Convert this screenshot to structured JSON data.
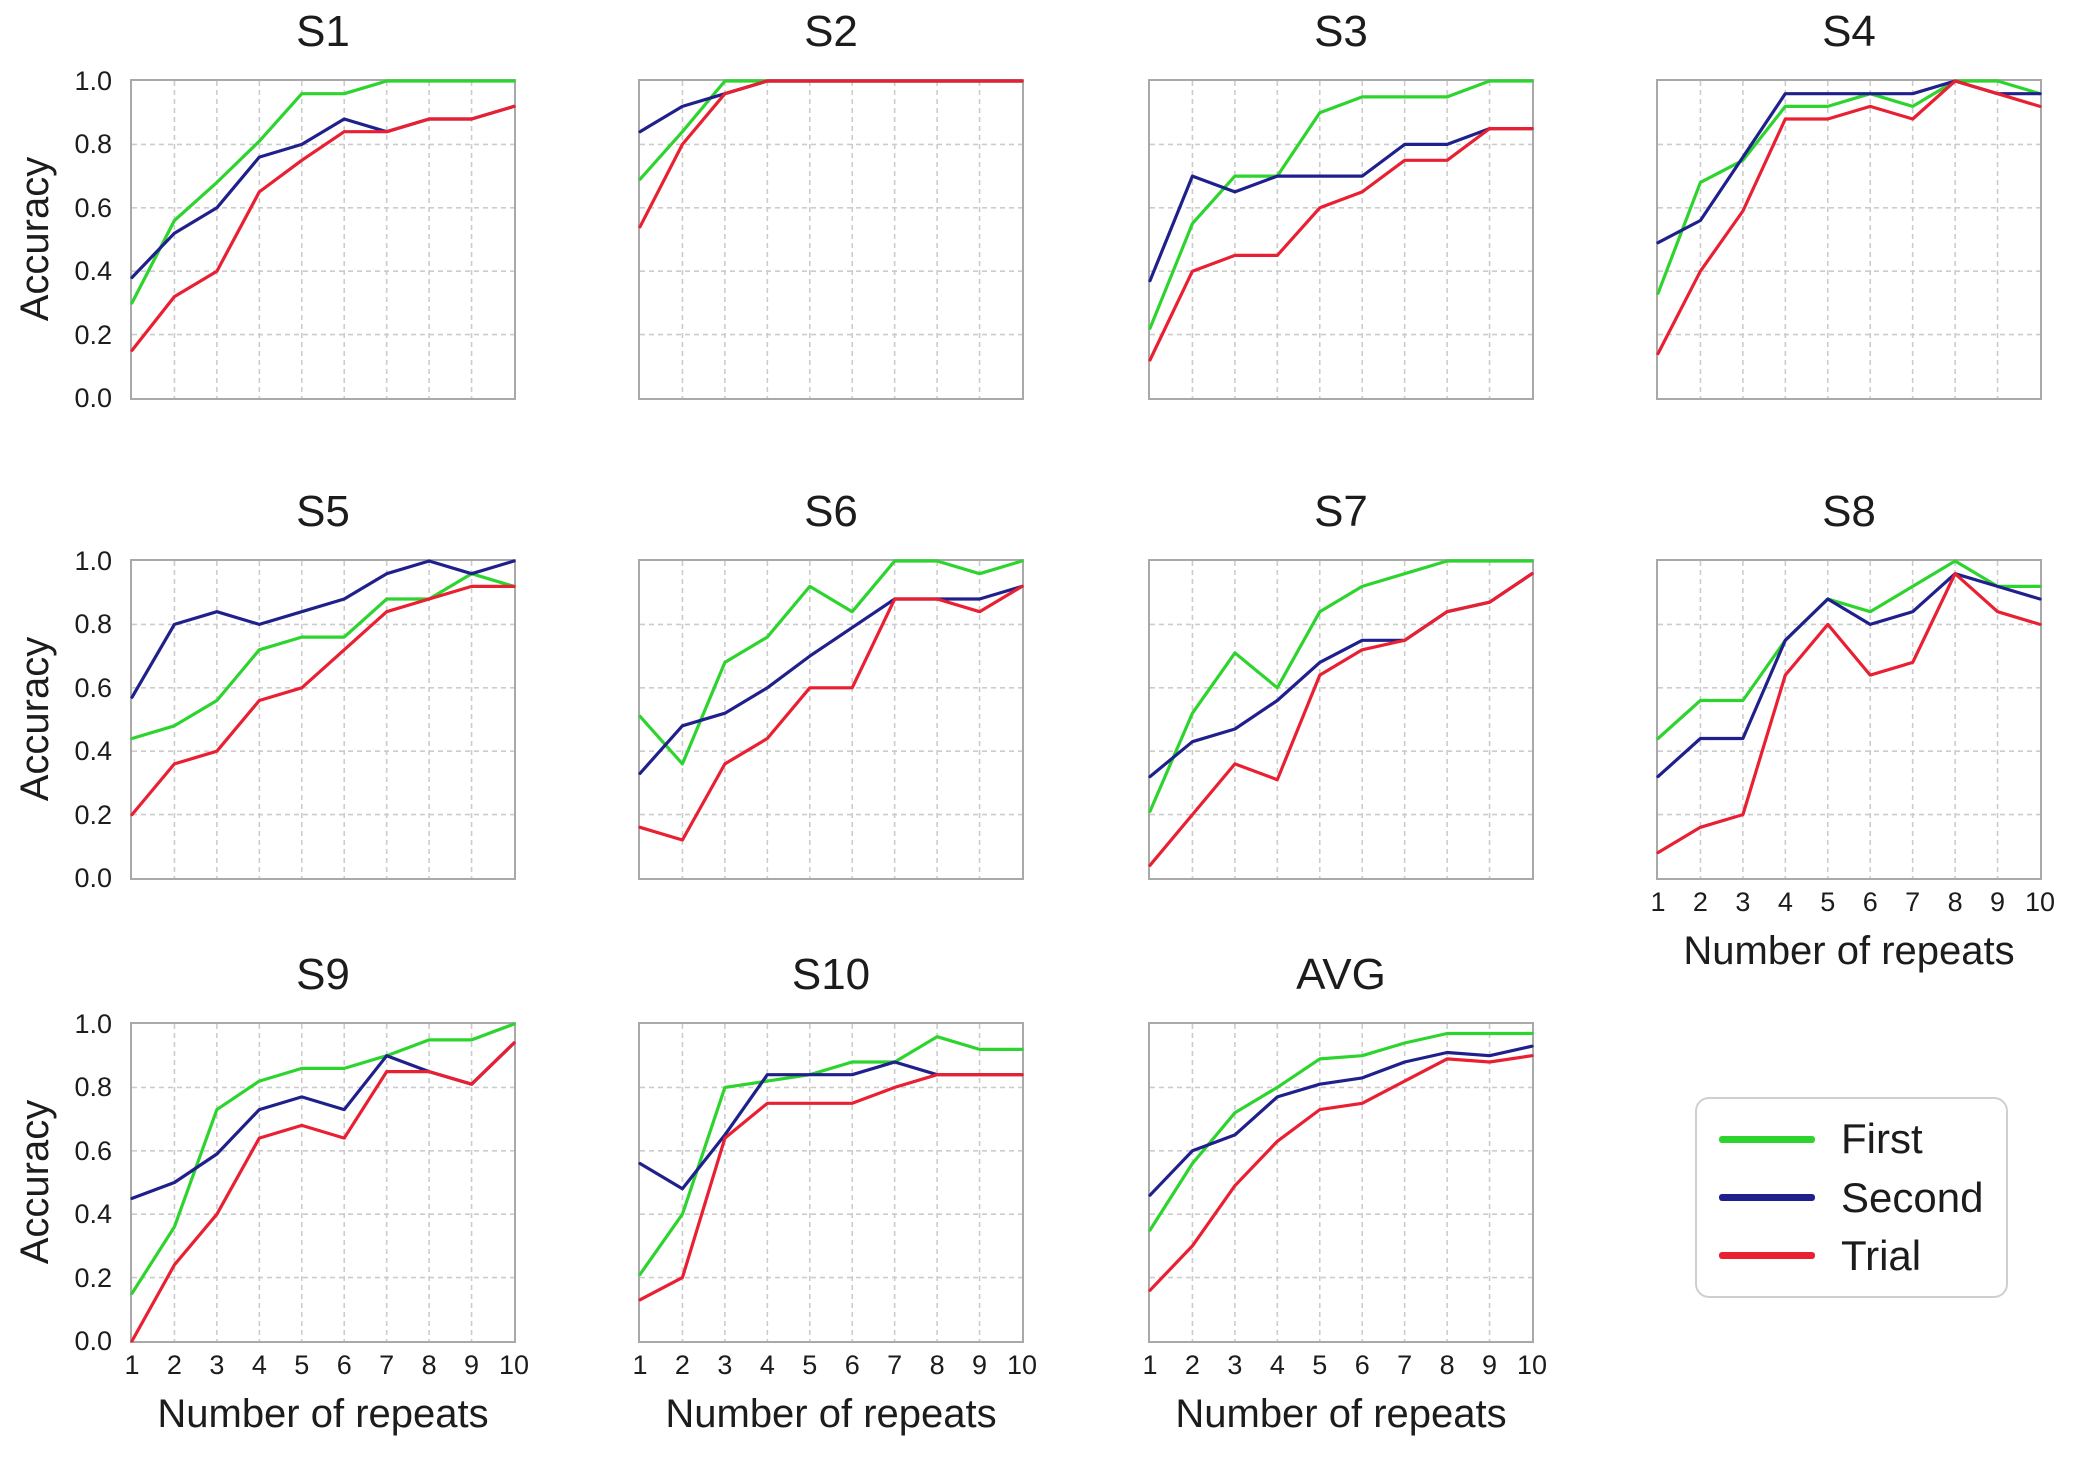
{
  "page": {
    "background": "#ffffff"
  },
  "axes": {
    "x_label": "Number of repeats",
    "y_label": "Accuracy",
    "x_ticks": [
      "1",
      "2",
      "3",
      "4",
      "5",
      "6",
      "7",
      "8",
      "9",
      "10"
    ],
    "y_ticks": [
      "1.0",
      "0.8",
      "0.6",
      "0.4",
      "0.2",
      "0.0"
    ]
  },
  "legend": {
    "position": "bottom-right, outside last grid cell",
    "entries": [
      {
        "label": "First",
        "color": "#2ed42e"
      },
      {
        "label": "Second",
        "color": "#20208c"
      },
      {
        "label": "Trial",
        "color": "#e92032"
      }
    ]
  },
  "chart_data": [
    {
      "type": "line",
      "title": "S1",
      "xlabel": "Number of repeats",
      "ylabel": "Accuracy",
      "ylim": [
        0,
        1
      ],
      "x": [
        1,
        2,
        3,
        4,
        5,
        6,
        7,
        8,
        9,
        10
      ],
      "grid": true,
      "series": [
        {
          "name": "First",
          "values": [
            0.3,
            0.56,
            0.68,
            0.81,
            0.96,
            0.96,
            1.0,
            1.0,
            1.0,
            1.0
          ]
        },
        {
          "name": "Second",
          "values": [
            0.38,
            0.52,
            0.6,
            0.76,
            0.8,
            0.88,
            0.84,
            0.88,
            0.88,
            0.92
          ]
        },
        {
          "name": "Trial",
          "values": [
            0.15,
            0.32,
            0.4,
            0.65,
            0.75,
            0.84,
            0.84,
            0.88,
            0.88,
            0.92
          ]
        }
      ]
    },
    {
      "type": "line",
      "title": "S2",
      "xlabel": "Number of repeats",
      "ylabel": "Accuracy",
      "ylim": [
        0,
        1
      ],
      "x": [
        1,
        2,
        3,
        4,
        5,
        6,
        7,
        8,
        9,
        10
      ],
      "grid": true,
      "series": [
        {
          "name": "First",
          "values": [
            0.69,
            0.84,
            1.0,
            1.0,
            1.0,
            1.0,
            1.0,
            1.0,
            1.0,
            1.0
          ]
        },
        {
          "name": "Second",
          "values": [
            0.84,
            0.92,
            0.96,
            1.0,
            1.0,
            1.0,
            1.0,
            1.0,
            1.0,
            1.0
          ]
        },
        {
          "name": "Trial",
          "values": [
            0.54,
            0.8,
            0.96,
            1.0,
            1.0,
            1.0,
            1.0,
            1.0,
            1.0,
            1.0
          ]
        }
      ]
    },
    {
      "type": "line",
      "title": "S3",
      "xlabel": "Number of repeats",
      "ylabel": "Accuracy",
      "ylim": [
        0,
        1
      ],
      "x": [
        1,
        2,
        3,
        4,
        5,
        6,
        7,
        8,
        9,
        10
      ],
      "grid": true,
      "series": [
        {
          "name": "First",
          "values": [
            0.22,
            0.55,
            0.7,
            0.7,
            0.9,
            0.95,
            0.95,
            0.95,
            1.0,
            1.0
          ]
        },
        {
          "name": "Second",
          "values": [
            0.37,
            0.7,
            0.65,
            0.7,
            0.7,
            0.7,
            0.8,
            0.8,
            0.85,
            0.85
          ]
        },
        {
          "name": "Trial",
          "values": [
            0.12,
            0.4,
            0.45,
            0.45,
            0.6,
            0.65,
            0.75,
            0.75,
            0.85,
            0.85
          ]
        }
      ]
    },
    {
      "type": "line",
      "title": "S4",
      "xlabel": "Number of repeats",
      "ylabel": "Accuracy",
      "ylim": [
        0,
        1
      ],
      "x": [
        1,
        2,
        3,
        4,
        5,
        6,
        7,
        8,
        9,
        10
      ],
      "grid": true,
      "series": [
        {
          "name": "First",
          "values": [
            0.33,
            0.68,
            0.75,
            0.92,
            0.92,
            0.96,
            0.92,
            1.0,
            1.0,
            0.96
          ]
        },
        {
          "name": "Second",
          "values": [
            0.49,
            0.56,
            0.76,
            0.96,
            0.96,
            0.96,
            0.96,
            1.0,
            0.96,
            0.96
          ]
        },
        {
          "name": "Trial",
          "values": [
            0.14,
            0.4,
            0.59,
            0.88,
            0.88,
            0.92,
            0.88,
            1.0,
            0.96,
            0.92
          ]
        }
      ]
    },
    {
      "type": "line",
      "title": "S5",
      "xlabel": "Number of repeats",
      "ylabel": "Accuracy",
      "ylim": [
        0,
        1
      ],
      "x": [
        1,
        2,
        3,
        4,
        5,
        6,
        7,
        8,
        9,
        10
      ],
      "grid": true,
      "series": [
        {
          "name": "First",
          "values": [
            0.44,
            0.48,
            0.56,
            0.72,
            0.76,
            0.76,
            0.88,
            0.88,
            0.96,
            0.92
          ]
        },
        {
          "name": "Second",
          "values": [
            0.57,
            0.8,
            0.84,
            0.8,
            0.84,
            0.88,
            0.96,
            1.0,
            0.96,
            1.0
          ]
        },
        {
          "name": "Trial",
          "values": [
            0.2,
            0.36,
            0.4,
            0.56,
            0.6,
            0.72,
            0.84,
            0.88,
            0.92,
            0.92
          ]
        }
      ]
    },
    {
      "type": "line",
      "title": "S6",
      "xlabel": "Number of repeats",
      "ylabel": "Accuracy",
      "ylim": [
        0,
        1
      ],
      "x": [
        1,
        2,
        3,
        4,
        5,
        6,
        7,
        8,
        9,
        10
      ],
      "grid": true,
      "series": [
        {
          "name": "First",
          "values": [
            0.51,
            0.36,
            0.68,
            0.76,
            0.92,
            0.84,
            1.0,
            1.0,
            0.96,
            1.0
          ]
        },
        {
          "name": "Second",
          "values": [
            0.33,
            0.48,
            0.52,
            0.6,
            0.7,
            0.79,
            0.88,
            0.88,
            0.88,
            0.92
          ]
        },
        {
          "name": "Trial",
          "values": [
            0.16,
            0.12,
            0.36,
            0.44,
            0.6,
            0.6,
            0.88,
            0.88,
            0.84,
            0.92
          ]
        }
      ]
    },
    {
      "type": "line",
      "title": "S7",
      "xlabel": "Number of repeats",
      "ylabel": "Accuracy",
      "ylim": [
        0,
        1
      ],
      "x": [
        1,
        2,
        3,
        4,
        5,
        6,
        7,
        8,
        9,
        10
      ],
      "grid": true,
      "series": [
        {
          "name": "First",
          "values": [
            0.21,
            0.52,
            0.71,
            0.6,
            0.84,
            0.92,
            0.96,
            1.0,
            1.0,
            1.0
          ]
        },
        {
          "name": "Second",
          "values": [
            0.32,
            0.43,
            0.47,
            0.56,
            0.68,
            0.75,
            0.75,
            0.84,
            0.87,
            0.96
          ]
        },
        {
          "name": "Trial",
          "values": [
            0.04,
            0.2,
            0.36,
            0.31,
            0.64,
            0.72,
            0.75,
            0.84,
            0.87,
            0.96
          ]
        }
      ]
    },
    {
      "type": "line",
      "title": "S8",
      "xlabel": "Number of repeats",
      "ylabel": "Accuracy",
      "ylim": [
        0,
        1
      ],
      "x": [
        1,
        2,
        3,
        4,
        5,
        6,
        7,
        8,
        9,
        10
      ],
      "grid": true,
      "series": [
        {
          "name": "First",
          "values": [
            0.44,
            0.56,
            0.56,
            0.75,
            0.88,
            0.84,
            0.92,
            1.0,
            0.92,
            0.92
          ]
        },
        {
          "name": "Second",
          "values": [
            0.32,
            0.44,
            0.44,
            0.75,
            0.88,
            0.8,
            0.84,
            0.96,
            0.92,
            0.88
          ]
        },
        {
          "name": "Trial",
          "values": [
            0.08,
            0.16,
            0.2,
            0.64,
            0.8,
            0.64,
            0.68,
            0.96,
            0.84,
            0.8
          ]
        }
      ]
    },
    {
      "type": "line",
      "title": "S9",
      "xlabel": "Number of repeats",
      "ylabel": "Accuracy",
      "ylim": [
        0,
        1
      ],
      "x": [
        1,
        2,
        3,
        4,
        5,
        6,
        7,
        8,
        9,
        10
      ],
      "grid": true,
      "series": [
        {
          "name": "First",
          "values": [
            0.15,
            0.36,
            0.73,
            0.82,
            0.86,
            0.86,
            0.9,
            0.95,
            0.95,
            1.0
          ]
        },
        {
          "name": "Second",
          "values": [
            0.45,
            0.5,
            0.59,
            0.73,
            0.77,
            0.73,
            0.9,
            0.85,
            0.81,
            0.94
          ]
        },
        {
          "name": "Trial",
          "values": [
            0.0,
            0.24,
            0.4,
            0.64,
            0.68,
            0.64,
            0.85,
            0.85,
            0.81,
            0.94
          ]
        }
      ]
    },
    {
      "type": "line",
      "title": "S10",
      "xlabel": "Number of repeats",
      "ylabel": "Accuracy",
      "ylim": [
        0,
        1
      ],
      "x": [
        1,
        2,
        3,
        4,
        5,
        6,
        7,
        8,
        9,
        10
      ],
      "grid": true,
      "series": [
        {
          "name": "First",
          "values": [
            0.21,
            0.4,
            0.8,
            0.82,
            0.84,
            0.88,
            0.88,
            0.96,
            0.92,
            0.92
          ]
        },
        {
          "name": "Second",
          "values": [
            0.56,
            0.48,
            0.65,
            0.84,
            0.84,
            0.84,
            0.88,
            0.84,
            0.84,
            0.84
          ]
        },
        {
          "name": "Trial",
          "values": [
            0.13,
            0.2,
            0.64,
            0.75,
            0.75,
            0.75,
            0.8,
            0.84,
            0.84,
            0.84
          ]
        }
      ]
    },
    {
      "type": "line",
      "title": "AVG",
      "xlabel": "Number of repeats",
      "ylabel": "Accuracy",
      "ylim": [
        0,
        1
      ],
      "x": [
        1,
        2,
        3,
        4,
        5,
        6,
        7,
        8,
        9,
        10
      ],
      "grid": true,
      "series": [
        {
          "name": "First",
          "values": [
            0.35,
            0.56,
            0.72,
            0.8,
            0.89,
            0.9,
            0.94,
            0.97,
            0.97,
            0.97
          ]
        },
        {
          "name": "Second",
          "values": [
            0.46,
            0.6,
            0.65,
            0.77,
            0.81,
            0.83,
            0.88,
            0.91,
            0.9,
            0.93
          ]
        },
        {
          "name": "Trial",
          "values": [
            0.16,
            0.3,
            0.49,
            0.63,
            0.73,
            0.75,
            0.82,
            0.89,
            0.88,
            0.9
          ]
        }
      ]
    }
  ]
}
